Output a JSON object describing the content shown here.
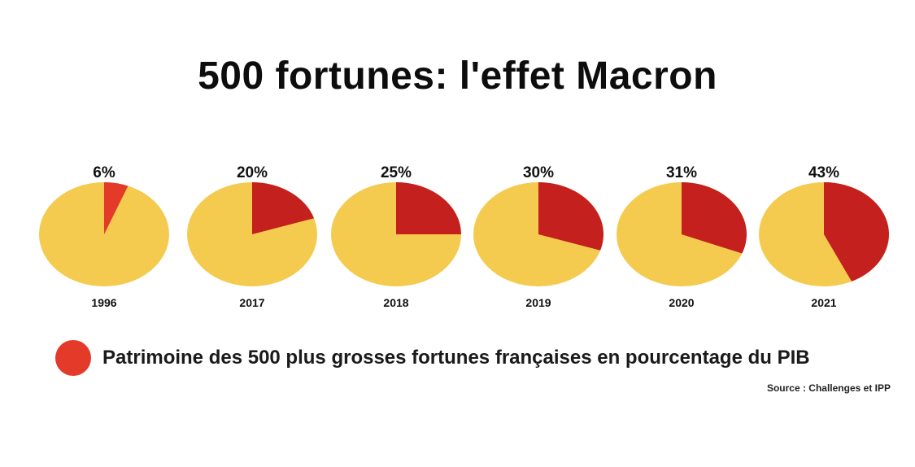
{
  "title": "500 fortunes: l'effet Macron",
  "legend": {
    "label": "Patrimoine des 500 plus grosses fortunes françaises en pourcentage du PIB",
    "color": "#e33a2a"
  },
  "source": "Source : Challenges et IPP",
  "colors": {
    "remainder": "#f4cb4f",
    "share_light": "#e33a2a",
    "share_dark": "#c4201e"
  },
  "chart_data": {
    "type": "pie",
    "title": "500 fortunes: l'effet Macron",
    "series_name": "Patrimoine des 500 plus grosses fortunes françaises en pourcentage du PIB",
    "categories": [
      "1996",
      "2017",
      "2018",
      "2019",
      "2020",
      "2021"
    ],
    "values": [
      6,
      20,
      25,
      30,
      31,
      43
    ],
    "value_labels": [
      "6%",
      "20%",
      "25%",
      "30%",
      "31%",
      "43%"
    ],
    "unit": "%"
  }
}
